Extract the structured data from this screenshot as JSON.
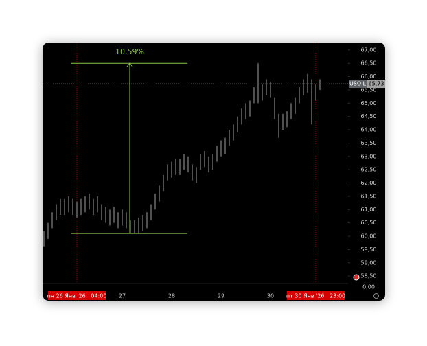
{
  "chart_data": {
    "type": "range-bar",
    "symbol": "USOIL",
    "color": "#6b6b6b",
    "categories": [
      null,
      null,
      null,
      null,
      null,
      null,
      null,
      null,
      "пн 26 Янв '26   04:00",
      null,
      null,
      null,
      null,
      null,
      null,
      null,
      null,
      null,
      null,
      "27",
      null,
      null,
      null,
      null,
      null,
      null,
      null,
      null,
      null,
      null,
      null,
      "28",
      null,
      null,
      null,
      null,
      null,
      null,
      null,
      null,
      null,
      null,
      null,
      "29",
      null,
      null,
      null,
      null,
      null,
      null,
      null,
      null,
      null,
      null,
      null,
      "30",
      null,
      null,
      null,
      null,
      null,
      null,
      null,
      null,
      null,
      null,
      "пт 30 Янв '26   23:00",
      null
    ],
    "series": [
      {
        "name": "high",
        "values": [
          60.2,
          60.5,
          60.9,
          61.2,
          61.4,
          61.4,
          61.5,
          61.4,
          61.3,
          61.4,
          61.5,
          61.6,
          61.4,
          61.5,
          61.2,
          61.1,
          61.0,
          61.1,
          60.9,
          61.0,
          60.9,
          60.6,
          60.6,
          60.7,
          60.8,
          60.9,
          61.2,
          61.6,
          61.9,
          62.3,
          62.7,
          62.8,
          62.9,
          62.9,
          63.1,
          63.0,
          62.7,
          62.6,
          63.1,
          63.2,
          63.0,
          63.1,
          63.4,
          63.6,
          63.7,
          64.0,
          64.2,
          64.5,
          64.8,
          65.0,
          65.1,
          65.6,
          66.5,
          65.7,
          65.9,
          65.8,
          65.2,
          64.6,
          64.6,
          64.7,
          65.0,
          65.2,
          65.6,
          65.9,
          66.1,
          65.9,
          65.7,
          65.9
        ]
      },
      {
        "name": "low",
        "values": [
          59.6,
          59.9,
          60.3,
          60.6,
          60.8,
          60.8,
          60.9,
          60.8,
          60.7,
          60.8,
          60.9,
          61.0,
          60.8,
          60.9,
          60.6,
          60.5,
          60.4,
          60.5,
          60.3,
          60.4,
          60.3,
          60.1,
          60.1,
          60.1,
          60.2,
          60.3,
          60.6,
          61.0,
          61.3,
          61.7,
          62.1,
          62.2,
          62.3,
          62.3,
          62.5,
          62.4,
          62.1,
          62.0,
          62.5,
          62.6,
          62.4,
          62.5,
          62.8,
          63.0,
          63.1,
          63.4,
          63.6,
          63.9,
          64.2,
          64.4,
          64.5,
          65.0,
          65.0,
          65.1,
          65.3,
          65.2,
          64.4,
          63.7,
          64.0,
          64.1,
          64.4,
          64.6,
          65.0,
          65.3,
          65.4,
          64.2,
          65.1,
          65.5
        ]
      }
    ],
    "ylim": [
      58.22,
      67.28
    ],
    "yticks": [
      {
        "value": 67,
        "label": "67,00"
      },
      {
        "value": 66.5,
        "label": "66,50"
      },
      {
        "value": 66,
        "label": "66,00"
      },
      {
        "value": 65.5,
        "label": "65,50"
      },
      {
        "value": 65,
        "label": "65,00"
      },
      {
        "value": 64.5,
        "label": "64,50"
      },
      {
        "value": 64,
        "label": "64,00"
      },
      {
        "value": 63.5,
        "label": "63,50"
      },
      {
        "value": 63,
        "label": "63,00"
      },
      {
        "value": 62.5,
        "label": "62,50"
      },
      {
        "value": 62,
        "label": "62,00"
      },
      {
        "value": 61.5,
        "label": "61,50"
      },
      {
        "value": 61,
        "label": "61,00"
      },
      {
        "value": 60.5,
        "label": "60,50"
      },
      {
        "value": 60,
        "label": "60,00"
      },
      {
        "value": 59.5,
        "label": "59,50"
      },
      {
        "value": 59,
        "label": "59,00"
      },
      {
        "value": 58.5,
        "label": "58,50"
      }
    ],
    "lower_scale_label": "0,00",
    "last_price": {
      "value": 65.73,
      "label": "65,73"
    },
    "measure": {
      "label": "10,59%",
      "top": 66.5,
      "bottom": 60.1,
      "color": "#8bc34a"
    },
    "marker_color": "#d50000"
  }
}
